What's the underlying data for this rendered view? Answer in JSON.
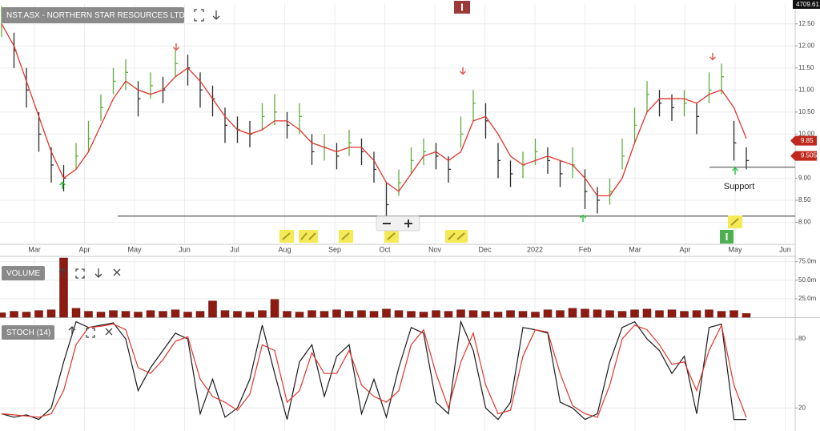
{
  "chart_data": [
    {
      "type": "ohlc",
      "title": "NST.ASX - NORTHERN STAR RESOURCES LTD",
      "xticks": [
        "Mar",
        "Apr",
        "May",
        "Jun",
        "Jul",
        "Aug",
        "Sep",
        "Oct",
        "Nov",
        "Dec",
        "2022",
        "Feb",
        "Mar",
        "Apr",
        "May",
        "Jun"
      ],
      "high": [
        12.9,
        12.3,
        11.5,
        10.5,
        9.7,
        9.3,
        9.8,
        10.3,
        10.9,
        11.5,
        11.7,
        11.2,
        11.4,
        11.3,
        11.9,
        11.8,
        11.4,
        11.1,
        10.6,
        10.4,
        10.3,
        10.7,
        10.9,
        10.5,
        10.7,
        10.0,
        10.0,
        9.8,
        10.1,
        9.9,
        9.6,
        8.9,
        9.2,
        9.7,
        9.9,
        9.8,
        9.5,
        10.4,
        11.0,
        10.7,
        9.8,
        9.4,
        9.6,
        9.9,
        9.7,
        9.4,
        9.7,
        9.2,
        8.8,
        9.0,
        9.9,
        10.6,
        11.2,
        11.0,
        10.9,
        11.0,
        10.7,
        11.4,
        11.6,
        10.3,
        9.7
      ],
      "low": [
        12.2,
        11.5,
        10.6,
        9.6,
        8.9,
        8.7,
        9.2,
        9.6,
        10.3,
        10.9,
        11.0,
        10.4,
        10.8,
        10.7,
        11.3,
        11.1,
        10.6,
        10.4,
        9.8,
        9.8,
        9.7,
        10.1,
        10.2,
        9.9,
        10.0,
        9.3,
        9.4,
        9.2,
        9.5,
        9.3,
        8.9,
        8.1,
        8.6,
        9.1,
        9.3,
        9.2,
        8.9,
        9.7,
        10.3,
        9.9,
        9.0,
        8.8,
        9.0,
        9.3,
        9.1,
        8.8,
        9.0,
        8.3,
        8.2,
        8.4,
        9.2,
        9.8,
        10.5,
        10.4,
        10.3,
        10.4,
        10.0,
        10.7,
        10.9,
        9.4,
        9.2
      ],
      "close": [
        12.6,
        11.9,
        11.0,
        10.0,
        9.3,
        9.0,
        9.5,
        9.9,
        10.6,
        11.2,
        11.4,
        10.8,
        11.1,
        11.0,
        11.6,
        11.5,
        11.0,
        10.8,
        10.2,
        10.1,
        10.0,
        10.4,
        10.5,
        10.2,
        10.4,
        9.6,
        9.7,
        9.5,
        9.8,
        9.6,
        9.2,
        8.4,
        8.9,
        9.4,
        9.6,
        9.5,
        9.2,
        10.0,
        10.7,
        10.3,
        9.4,
        9.1,
        9.3,
        9.6,
        9.4,
        9.1,
        9.3,
        8.7,
        8.5,
        8.7,
        9.5,
        10.2,
        10.9,
        10.7,
        10.6,
        10.7,
        10.4,
        11.0,
        11.3,
        9.8,
        9.4
      ],
      "up_color": "#5fae3e",
      "down_color": "#2b2b2b",
      "ma": {
        "color": "#e0352b",
        "values": [
          12.5,
          12.0,
          11.2,
          10.4,
          9.6,
          9.0,
          9.2,
          9.6,
          10.2,
          10.8,
          11.2,
          11.0,
          10.9,
          11.0,
          11.3,
          11.5,
          11.2,
          10.8,
          10.4,
          10.1,
          10.0,
          10.1,
          10.3,
          10.3,
          10.1,
          9.8,
          9.7,
          9.6,
          9.7,
          9.7,
          9.4,
          8.9,
          8.7,
          9.1,
          9.5,
          9.6,
          9.4,
          9.6,
          10.3,
          10.4,
          10.0,
          9.5,
          9.3,
          9.4,
          9.5,
          9.4,
          9.3,
          9.0,
          8.6,
          8.6,
          9.0,
          9.8,
          10.5,
          10.8,
          10.8,
          10.8,
          10.7,
          10.9,
          11.0,
          10.6,
          9.9
        ]
      },
      "ylim": [
        7.5,
        12.95
      ],
      "yticks": [
        {
          "value": 8,
          "label": "8.00"
        },
        {
          "value": 8.5,
          "label": "8.50"
        },
        {
          "value": 9,
          "label": "9.00"
        },
        {
          "value": 10,
          "label": "10.00"
        },
        {
          "value": 10.5,
          "label": "10.50"
        },
        {
          "value": 11,
          "label": "11.00"
        },
        {
          "value": 11.5,
          "label": "11.50"
        },
        {
          "value": 12,
          "label": "12.00"
        },
        {
          "value": 12.5,
          "label": "12.50"
        }
      ],
      "hlines": [
        8.14,
        9.25
      ],
      "annotation": "Support",
      "price_tags": [
        {
          "value": 9.85,
          "label": "9.85"
        },
        {
          "value": 9.505,
          "label": "9.505"
        }
      ],
      "top_tag": "4709.61",
      "grid": true
    },
    {
      "type": "bar",
      "title": "VOLUME",
      "color": "#8e1b12",
      "values": [
        6,
        8,
        7,
        9,
        10,
        80,
        12,
        8,
        7,
        9,
        8,
        7,
        9,
        8,
        10,
        7,
        8,
        22,
        9,
        8,
        7,
        9,
        24,
        8,
        7,
        9,
        8,
        10,
        8,
        9,
        8,
        11,
        9,
        8,
        7,
        9,
        8,
        10,
        9,
        8,
        7,
        9,
        8,
        7,
        10,
        9,
        12,
        11,
        10,
        9,
        8,
        10,
        11,
        9,
        10,
        8,
        9,
        10,
        8,
        9,
        5
      ],
      "ylim": [
        0,
        80
      ],
      "yticks": [
        {
          "value": 25,
          "label": "25.0m"
        },
        {
          "value": 50,
          "label": "50.0m"
        },
        {
          "value": 75,
          "label": "75.0m"
        }
      ]
    },
    {
      "type": "line",
      "title": "STOCH (14)",
      "series": [
        {
          "color": "#1a1a1a",
          "values": [
            15,
            12,
            14,
            10,
            20,
            60,
            95,
            90,
            92,
            94,
            80,
            35,
            55,
            70,
            85,
            80,
            15,
            45,
            12,
            20,
            45,
            92,
            50,
            10,
            60,
            75,
            30,
            65,
            75,
            15,
            45,
            12,
            55,
            90,
            85,
            25,
            15,
            95,
            70,
            20,
            10,
            25,
            90,
            88,
            85,
            25,
            20,
            10,
            15,
            60,
            90,
            95,
            80,
            70,
            50,
            65,
            15,
            90,
            93,
            10,
            10
          ]
        },
        {
          "color": "#e0352b",
          "values": [
            15,
            14,
            13,
            12,
            15,
            35,
            75,
            90,
            91,
            93,
            88,
            55,
            50,
            62,
            78,
            82,
            45,
            30,
            25,
            18,
            32,
            75,
            70,
            25,
            35,
            68,
            50,
            50,
            70,
            40,
            30,
            25,
            35,
            75,
            88,
            50,
            20,
            60,
            85,
            40,
            15,
            18,
            65,
            88,
            86,
            50,
            22,
            15,
            12,
            40,
            80,
            92,
            88,
            75,
            58,
            60,
            35,
            70,
            92,
            40,
            12
          ]
        }
      ],
      "ylim": [
        0,
        97.5
      ],
      "yticks": [
        20,
        80
      ]
    }
  ]
}
